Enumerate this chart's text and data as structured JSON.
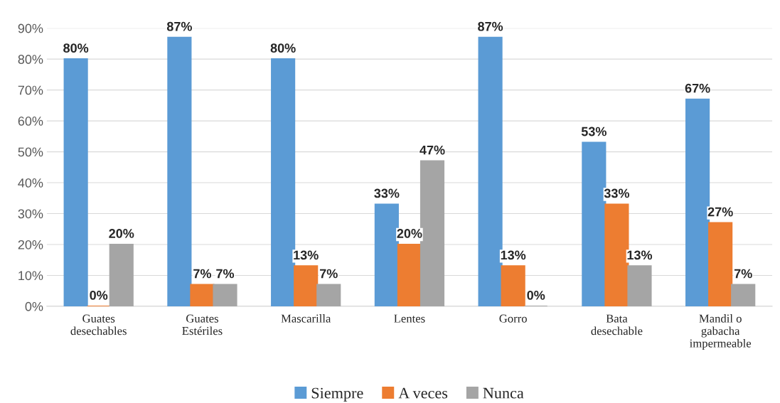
{
  "chart_data": {
    "type": "bar",
    "categories": [
      "Guates\ndesechables",
      "Guates\nEstériles",
      "Mascarilla",
      "Lentes",
      "Gorro",
      "Bata\ndesechable",
      "Mandil o\ngabacha\nimpermeable"
    ],
    "series": [
      {
        "name": "Siempre",
        "color": "#5b9bd5",
        "values": [
          80,
          87,
          80,
          33,
          87,
          53,
          67
        ],
        "value_labels": [
          "80%",
          "87%",
          "80%",
          "33%",
          "87%",
          "53%",
          "67%"
        ]
      },
      {
        "name": "A veces",
        "color": "#ed7d31",
        "values": [
          0,
          7,
          13,
          20,
          13,
          33,
          27
        ],
        "value_labels": [
          "0%",
          "7%",
          "13%",
          "20%",
          "13%",
          "33%",
          "27%"
        ]
      },
      {
        "name": "Nunca",
        "color": "#a5a5a5",
        "values": [
          20,
          7,
          7,
          47,
          0,
          13,
          7
        ],
        "value_labels": [
          "20%",
          "7%",
          "7%",
          "47%",
          "0%",
          "13%",
          "7%"
        ]
      }
    ],
    "ylim": [
      0,
      90
    ],
    "yticks": [
      {
        "value": 0,
        "label": "0%"
      },
      {
        "value": 10,
        "label": "10%"
      },
      {
        "value": 20,
        "label": "20%"
      },
      {
        "value": 30,
        "label": "30%"
      },
      {
        "value": 40,
        "label": "40%"
      },
      {
        "value": 50,
        "label": "50%"
      },
      {
        "value": 60,
        "label": "60%"
      },
      {
        "value": 70,
        "label": "70%"
      },
      {
        "value": 80,
        "label": "80%"
      },
      {
        "value": 90,
        "label": "90%"
      }
    ],
    "grid": "y",
    "legend": "bottom"
  }
}
